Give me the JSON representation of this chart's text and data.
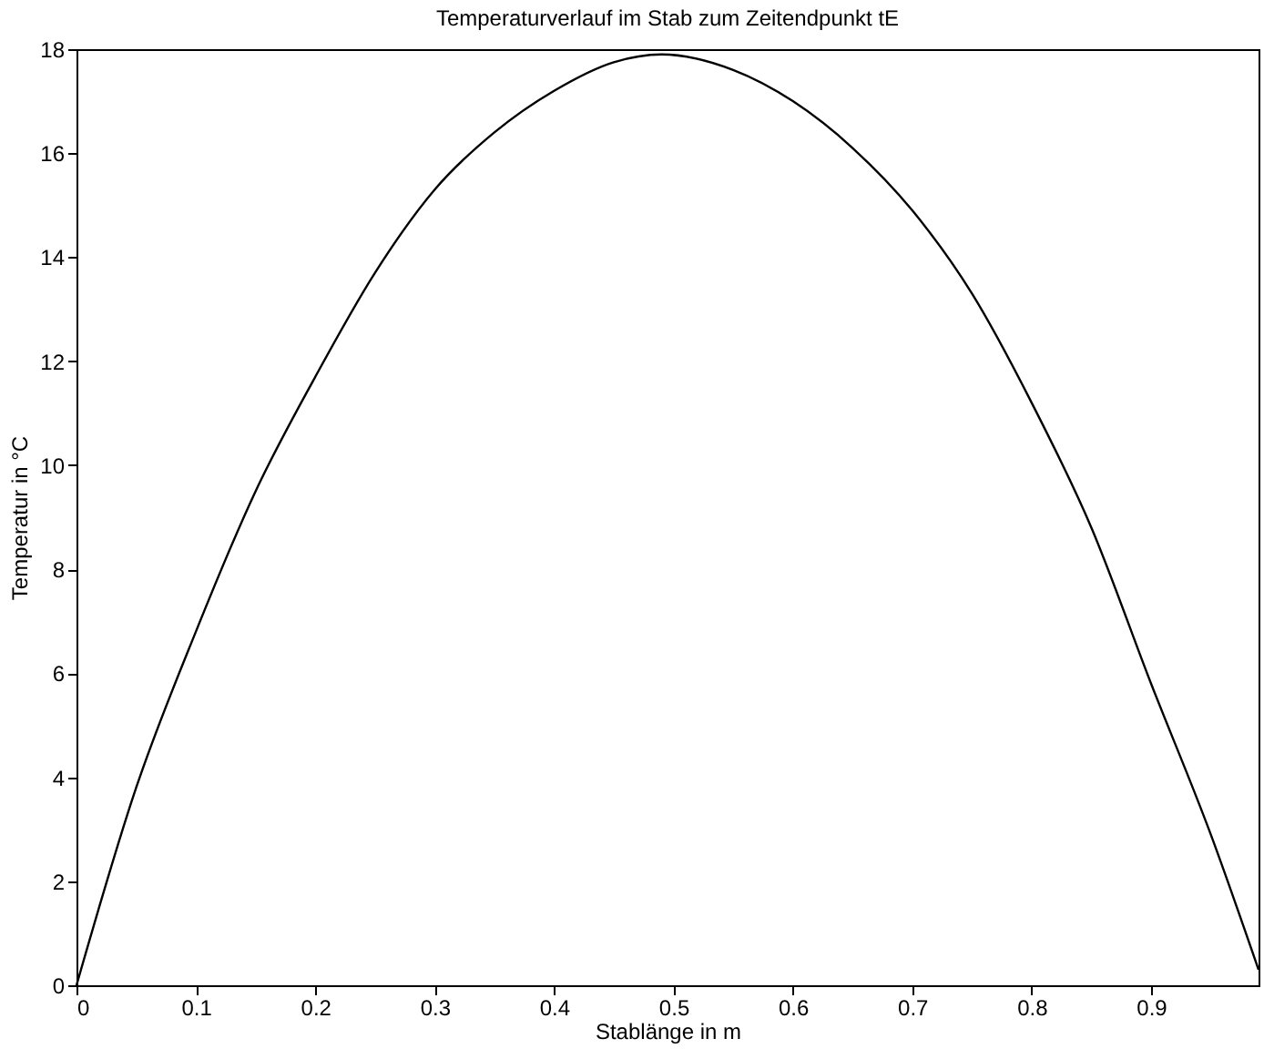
{
  "chart_data": {
    "type": "line",
    "title": "Temperaturverlauf im Stab zum Zeitendpunkt tE",
    "xlabel": "Stablänge in m",
    "ylabel": "Temperatur in °C",
    "series": [
      {
        "color": "#000000",
        "x": [
          0,
          0.05,
          0.1,
          0.15,
          0.2,
          0.25,
          0.3,
          0.35,
          0.4,
          0.45,
          0.49,
          0.55,
          0.6,
          0.65,
          0.7,
          0.75,
          0.8,
          0.85,
          0.9,
          0.95,
          0.99
        ],
        "values": [
          0,
          3.8,
          6.8,
          9.5,
          11.7,
          13.7,
          15.3,
          16.4,
          17.2,
          17.75,
          17.9,
          17.6,
          17.0,
          16.1,
          14.9,
          13.3,
          11.2,
          8.8,
          5.8,
          2.9,
          0.3
        ]
      }
    ],
    "xlim": [
      0,
      0.99
    ],
    "xticks": [
      0,
      0.1,
      0.2,
      0.3,
      0.4,
      0.5,
      0.6,
      0.7,
      0.8,
      0.9
    ],
    "ylim": [
      0,
      18
    ],
    "yticks": [
      0,
      2,
      4,
      6,
      8,
      10,
      12,
      14,
      16,
      18
    ],
    "grid": false
  }
}
